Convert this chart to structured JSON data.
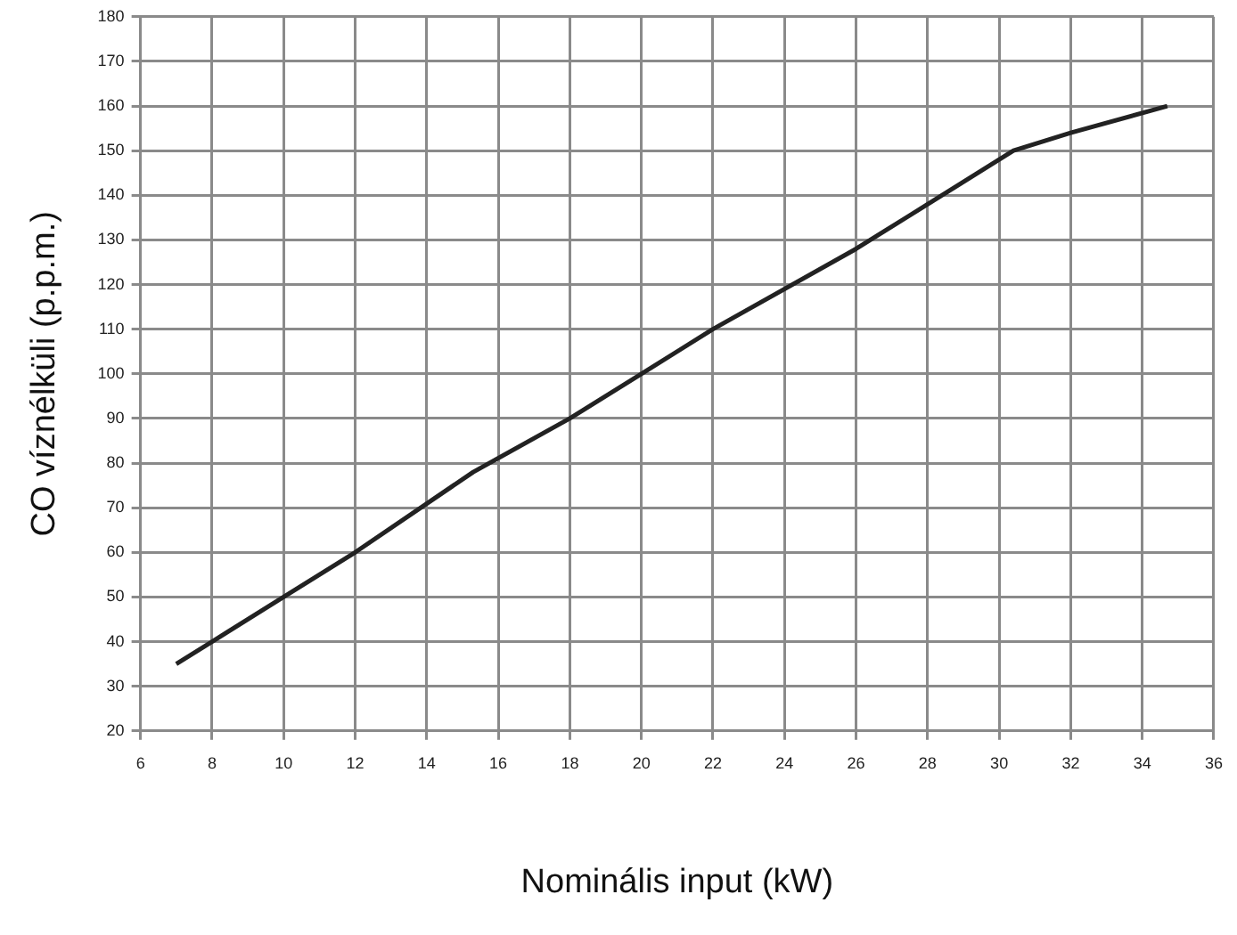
{
  "chart_data": {
    "type": "line",
    "xlabel": "Nominális input (kW)",
    "ylabel": "CO víznélküli (p.p.m.)",
    "x": [
      7,
      8,
      10,
      12,
      15.3,
      18,
      20,
      22,
      26,
      28,
      30.4,
      32,
      34.7
    ],
    "series": [
      {
        "color": "#222222",
        "values": [
          35,
          40,
          50,
          60,
          78,
          90,
          100,
          110,
          128,
          138,
          150,
          154,
          160
        ]
      }
    ],
    "xlim": [
      6,
      36
    ],
    "xticks": [
      6,
      8,
      10,
      12,
      14,
      16,
      18,
      20,
      22,
      24,
      26,
      28,
      30,
      32,
      34,
      36
    ],
    "ylim": [
      20,
      180
    ],
    "yticks": [
      20,
      30,
      40,
      50,
      60,
      70,
      80,
      90,
      100,
      110,
      120,
      130,
      140,
      150,
      160,
      170,
      180
    ],
    "grid": true,
    "legend": false,
    "marker": "none",
    "line_style": "solid"
  }
}
